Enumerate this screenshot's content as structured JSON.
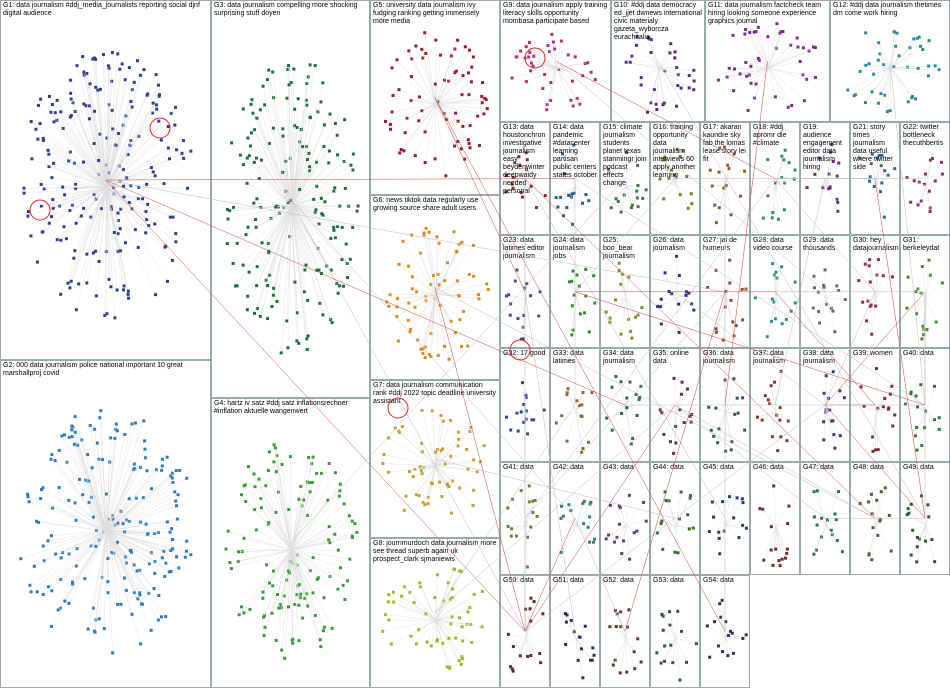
{
  "groups": [
    {
      "label": "G1: data journalism #ddj_media_journalists reporting social djnf digital audience",
      "color": "#2c3e8c"
    },
    {
      "label": "G2: 000 data journalism police national important 10 great marshallproj covid",
      "color": "#2b7bc0"
    },
    {
      "label": "G3: data journalism compelling more shocking surprising stuff doyen",
      "color": "#1e6b3a"
    },
    {
      "label": "G4: hartz iv satz #ddj satz inflationsrechner #inflation aktuelle wangenwert",
      "color": "#3a9a3a"
    },
    {
      "label": "G5: university data journalism ivy fudging ranking getting immensely more media",
      "color": "#9b1c2c"
    },
    {
      "label": "G6: news tiktok data regularly use growing source share adult users",
      "color": "#d98a1c"
    },
    {
      "label": "G7: data journalism communication rank #ddj 2022 topic deadline university assistant",
      "color": "#c8a030"
    },
    {
      "label": "G8: journmurdoch data journalism more see thread superb again uk prospect_clark sjmaniewis",
      "color": "#9ab82a"
    },
    {
      "label": "G9: data journalism apply training literacy skills opportunity mombasa participate based",
      "color": "#b0307a"
    },
    {
      "label": "G10: #ddj data democracy ed_jjet dwnews international civic materialy gazeta_wyborcza eurachitalia",
      "color": "#5a2c7a"
    },
    {
      "label": "G11: data journalism factcheck team hiring looking someone experience graphics journal",
      "color": "#7a2c8c"
    },
    {
      "label": "G12: #ddj data journalism thetimes dm come work hiring",
      "color": "#2a8a9a"
    },
    {
      "label": "G13: data houstonchron investigative journalism easy beydenwinter deepwaidy needed personal",
      "color": "#8c2c2c"
    },
    {
      "label": "G14: data pandemic #datacenter learning partisan public centers states october",
      "color": "#2c5a8c"
    },
    {
      "label": "G15: climate journalism students planet texas stanmingr join podcast effects change",
      "color": "#3a7a3a"
    },
    {
      "label": "G16: training opportunity data journalism interviews 60 apply another learning",
      "color": "#7a7a2c"
    },
    {
      "label": "G17: akaran kaundre sky fab the lomas lease story lei fit",
      "color": "#8c5a2c"
    },
    {
      "label": "G18: #ddj apromr dle #climate",
      "color": "#2c8c6a"
    },
    {
      "label": "G19: audience engagement editor data journalism hiring",
      "color": "#6a2c8c"
    },
    {
      "label": "G21: story times journalism data useful where twitter side",
      "color": "#2c6a8c"
    },
    {
      "label": "G22: twitter bottleneck thecuthbertis",
      "color": "#8c2c6a"
    },
    {
      "label": "G23: data latimes editor journalism",
      "color": "#4a4a8c"
    },
    {
      "label": "G24: data journalism jobs",
      "color": "#2c8c2c"
    },
    {
      "label": "G25: boo_bear journalism",
      "color": "#8c8c2c"
    },
    {
      "label": "G26: data journalism",
      "color": "#2c2c8c"
    },
    {
      "label": "G27: jai de humeurs",
      "color": "#8c4a2c"
    },
    {
      "label": "G28: data video course",
      "color": "#2c8c8c"
    },
    {
      "label": "G29: data thousands",
      "color": "#6a6a6a"
    },
    {
      "label": "G30: hey datajournalism",
      "color": "#8c2c4a"
    },
    {
      "label": "G31: berkeleydat",
      "color": "#4a8c2c"
    },
    {
      "label": "G32: 17 good",
      "color": "#2c4a8c"
    },
    {
      "label": "G33: data latimes",
      "color": "#8c6a2c"
    },
    {
      "label": "G34: data journalism",
      "color": "#2c6a4a"
    },
    {
      "label": "G35: online data",
      "color": "#5a2c5a"
    },
    {
      "label": "G36: data journalism",
      "color": "#2c5a5a"
    },
    {
      "label": "G37: data journalism",
      "color": "#7a3a2c"
    },
    {
      "label": "G38: data journalism",
      "color": "#3a3a7a"
    },
    {
      "label": "G39: women",
      "color": "#7a2c3a"
    },
    {
      "label": "G40: data",
      "color": "#2c7a3a"
    },
    {
      "label": "G41: data",
      "color": "#7a7a3a"
    },
    {
      "label": "G42: data",
      "color": "#3a7a7a"
    },
    {
      "label": "G43: data",
      "color": "#6a3a7a"
    },
    {
      "label": "G44: data",
      "color": "#3a6a2c"
    },
    {
      "label": "G45: data",
      "color": "#2c3a6a"
    },
    {
      "label": "G46: data",
      "color": "#6a2c2c"
    },
    {
      "label": "G47: data",
      "color": "#2c6a6a"
    },
    {
      "label": "G48: data",
      "color": "#5a5a2c"
    },
    {
      "label": "G49: data",
      "color": "#2c5a2c"
    },
    {
      "label": "G50: data",
      "color": "#5a2c2c"
    },
    {
      "label": "G51: data",
      "color": "#2c2c5a"
    },
    {
      "label": "G52: data",
      "color": "#5a3a2c"
    },
    {
      "label": "G53: data",
      "color": "#2c5a3a"
    },
    {
      "label": "G54: data",
      "color": "#3a2c5a"
    }
  ]
}
